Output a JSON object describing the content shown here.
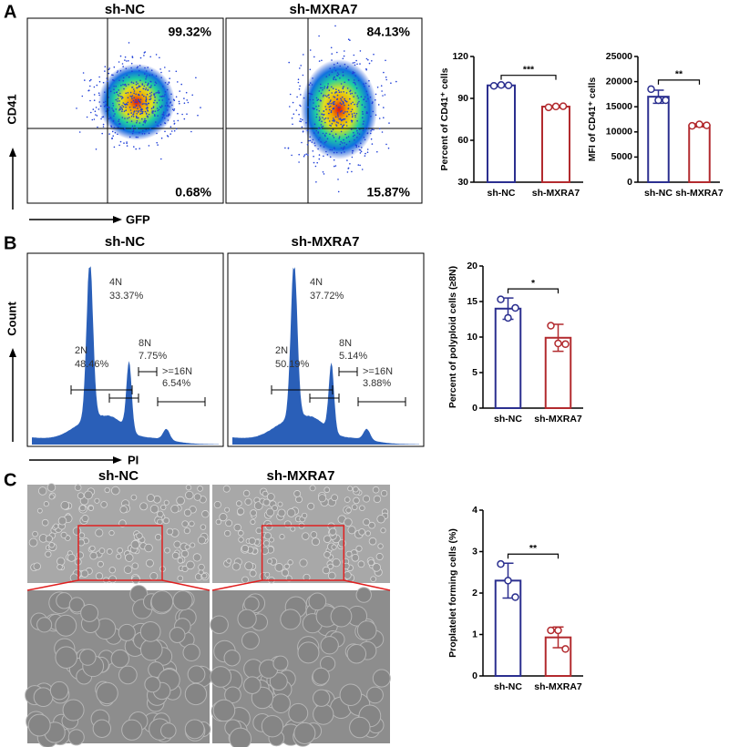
{
  "panel_labels": [
    "A",
    "B",
    "C"
  ],
  "flow": {
    "titles": [
      "sh-NC",
      "sh-MXRA7"
    ],
    "upper": [
      "99.32%",
      "84.13%"
    ],
    "lower": [
      "0.68%",
      "15.87%"
    ],
    "y_axis": "CD41",
    "x_axis": "GFP"
  },
  "cell_cycle": {
    "titles": [
      "sh-NC",
      "sh-MXRA7"
    ],
    "y_axis": "Count",
    "x_axis": "PI",
    "gates": [
      [
        {
          "name": "2N",
          "value": "48.46%"
        },
        {
          "name": "4N",
          "value": "33.37%"
        },
        {
          "name": "8N",
          "value": "7.75%"
        },
        {
          "name": ">=16N",
          "value": "6.54%"
        }
      ],
      [
        {
          "name": "2N",
          "value": "50.19%"
        },
        {
          "name": "4N",
          "value": "37.72%"
        },
        {
          "name": "8N",
          "value": "5.14%"
        },
        {
          "name": ">=16N",
          "value": "3.88%"
        }
      ]
    ]
  },
  "microscopy": {
    "titles": [
      "sh-NC",
      "sh-MXRA7"
    ]
  },
  "chart_data": [
    {
      "type": "bar",
      "y_label": "Percent of CD41⁺ cells",
      "categories": [
        "sh-NC",
        "sh-MXRA7"
      ],
      "colors": [
        "#2b2f8f",
        "#b22a2e"
      ],
      "values": [
        99.3,
        84.1
      ],
      "errors": [
        0.7,
        0.6
      ],
      "points": [
        [
          99,
          99.6,
          99.3
        ],
        [
          83.6,
          84.2,
          84.4
        ]
      ],
      "ylim": [
        30,
        120
      ],
      "yticks": [
        30,
        60,
        90,
        120
      ],
      "significance": "***"
    },
    {
      "type": "bar",
      "y_label": "MFI of CD41⁺ cells",
      "categories": [
        "sh-NC",
        "sh-MXRA7"
      ],
      "colors": [
        "#2b2f8f",
        "#b22a2e"
      ],
      "values": [
        17000,
        11300
      ],
      "errors": [
        1300,
        300
      ],
      "points": [
        [
          18500,
          16300,
          16300
        ],
        [
          11200,
          11500,
          11300
        ]
      ],
      "ylim": [
        0,
        25000
      ],
      "yticks": [
        0,
        5000,
        10000,
        15000,
        20000,
        25000
      ],
      "significance": "**"
    },
    {
      "type": "bar",
      "y_label": "Percent of polyploid cells (≥8N)",
      "categories": [
        "sh-NC",
        "sh-MXRA7"
      ],
      "colors": [
        "#2b2f8f",
        "#b22a2e"
      ],
      "values": [
        14,
        9.9
      ],
      "errors": [
        1.5,
        1.9
      ],
      "points": [
        [
          15.3,
          12.7,
          14.1
        ],
        [
          11.6,
          9.1,
          9.0
        ]
      ],
      "ylim": [
        0,
        20
      ],
      "yticks": [
        0,
        5,
        10,
        15,
        20
      ],
      "significance": "*"
    },
    {
      "type": "bar",
      "y_label": "Proplatelet forming cells (%)",
      "categories": [
        "sh-NC",
        "sh-MXRA7"
      ],
      "colors": [
        "#2b2f8f",
        "#b22a2e"
      ],
      "values": [
        2.3,
        0.93
      ],
      "errors": [
        0.42,
        0.25
      ],
      "points": [
        [
          2.7,
          2.3,
          1.9
        ],
        [
          1.1,
          1.1,
          0.65
        ]
      ],
      "ylim": [
        0,
        4
      ],
      "yticks": [
        0,
        1,
        2,
        3,
        4
      ],
      "significance": "**"
    }
  ]
}
